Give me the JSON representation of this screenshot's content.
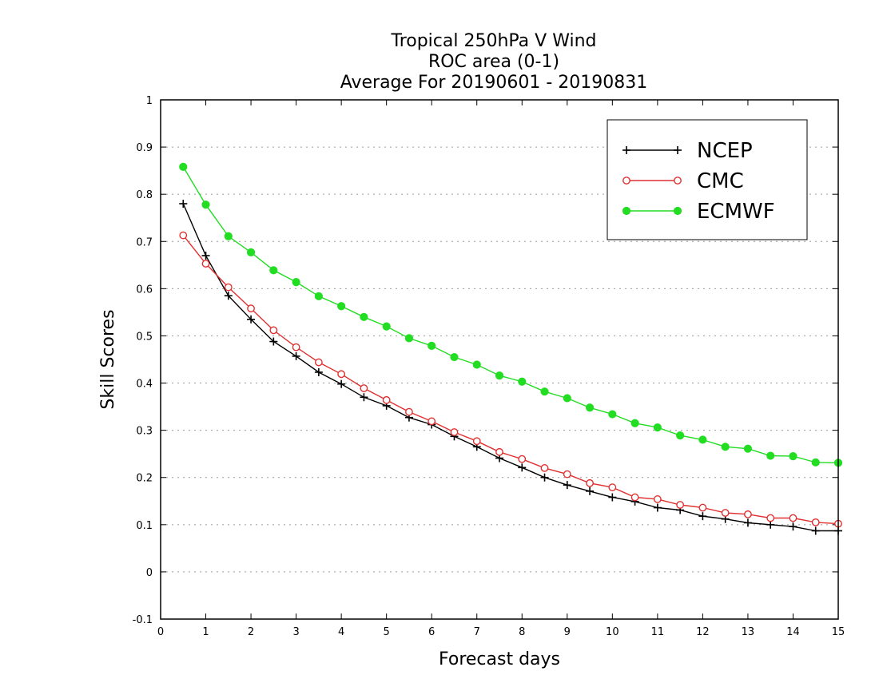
{
  "chart_data": {
    "type": "line",
    "title_lines": [
      "Tropical 250hPa V Wind",
      "ROC area (0-1)",
      "Average For 20190601 - 20190831"
    ],
    "xlabel": "Forecast days",
    "ylabel": "Skill Scores",
    "xlim": [
      0,
      15
    ],
    "ylim": [
      -0.1,
      1
    ],
    "xticks": [
      0,
      1,
      2,
      3,
      4,
      5,
      6,
      7,
      8,
      9,
      10,
      11,
      12,
      13,
      14,
      15
    ],
    "yticks": [
      -0.1,
      0,
      0.1,
      0.2,
      0.3,
      0.4,
      0.5,
      0.6,
      0.7,
      0.8,
      0.9,
      1
    ],
    "ytick_labels": [
      "-0.1",
      "0",
      "0.1",
      "0.2",
      "0.3",
      "0.4",
      "0.5",
      "0.6",
      "0.7",
      "0.8",
      "0.9",
      "1"
    ],
    "grid": "horizontal dotted",
    "legend_position": "top-right",
    "x": [
      0.5,
      1,
      1.5,
      2,
      2.5,
      3,
      3.5,
      4,
      4.5,
      5,
      5.5,
      6,
      6.5,
      7,
      7.5,
      8,
      8.5,
      9,
      9.5,
      10,
      10.5,
      11,
      11.5,
      12,
      12.5,
      13,
      13.5,
      14,
      14.5,
      15
    ],
    "series": [
      {
        "name": "NCEP",
        "color": "#000000",
        "marker": "plus",
        "values": [
          0.78,
          0.67,
          0.585,
          0.535,
          0.488,
          0.457,
          0.423,
          0.398,
          0.37,
          0.352,
          0.327,
          0.312,
          0.287,
          0.265,
          0.241,
          0.221,
          0.2,
          0.184,
          0.171,
          0.158,
          0.149,
          0.136,
          0.131,
          0.118,
          0.112,
          0.104,
          0.1,
          0.096,
          0.087,
          0.087
        ]
      },
      {
        "name": "CMC",
        "color": "#e03030",
        "marker": "open-circle",
        "values": [
          0.713,
          0.653,
          0.603,
          0.558,
          0.512,
          0.476,
          0.444,
          0.419,
          0.389,
          0.364,
          0.339,
          0.319,
          0.296,
          0.277,
          0.254,
          0.239,
          0.22,
          0.207,
          0.188,
          0.179,
          0.158,
          0.154,
          0.142,
          0.136,
          0.125,
          0.122,
          0.114,
          0.114,
          0.105,
          0.102
        ]
      },
      {
        "name": "ECMWF",
        "color": "#22dd22",
        "marker": "filled-circle",
        "values": [
          0.858,
          0.778,
          0.711,
          0.677,
          0.639,
          0.614,
          0.584,
          0.563,
          0.54,
          0.52,
          0.495,
          0.479,
          0.455,
          0.439,
          0.416,
          0.403,
          0.382,
          0.368,
          0.348,
          0.334,
          0.315,
          0.306,
          0.289,
          0.28,
          0.265,
          0.261,
          0.246,
          0.245,
          0.232,
          0.231
        ]
      }
    ]
  }
}
